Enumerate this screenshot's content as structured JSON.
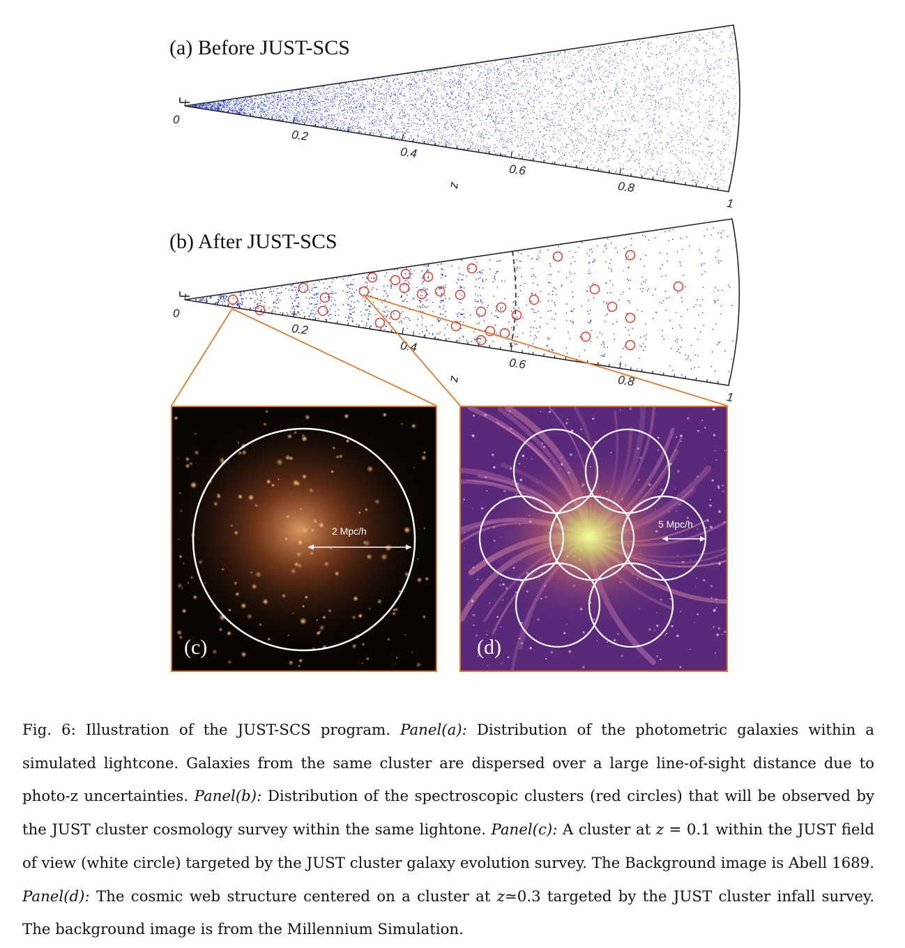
{
  "figure": {
    "panel_a_title": "(a) Before JUST-SCS",
    "panel_b_title": "(b) After JUST-SCS",
    "axis_label": "z",
    "tick_labels": [
      "0",
      "0.2",
      "0.4",
      "0.6",
      "0.8",
      "1"
    ],
    "panel_c_label": "(c)",
    "panel_c_scale": "2 Mpc/h",
    "panel_d_label": "(d)",
    "panel_d_scale": "5 Mpc/h",
    "colors": {
      "galaxy_points": "#1a2fd6",
      "cluster_circles": "#e23a2a",
      "zoom_lines": "#e07a2c",
      "panel_c_bg": "#0a0604",
      "panel_d_bg": "#6a2f8a"
    }
  },
  "caption": {
    "fig_id": "Fig. 6:",
    "intro": " Illustration of the JUST-SCS program. ",
    "a_head": "Panel(a):",
    "a_text": " Distribution of the photometric galaxies within a simulated lightcone. Galaxies from the same cluster are dispersed over a large line-of-sight distance due to photo-z uncertainties. ",
    "b_head": "Panel(b):",
    "b_text": " Distribution of the spectroscopic clusters (red circles) that will be observed by the JUST cluster cosmology survey within the same lightone. ",
    "c_head": "Panel(c):",
    "c_text_1": " A cluster at ",
    "c_z": "z",
    "c_text_2": " = 0.1 within the JUST field of view (white circle) targeted by the JUST cluster galaxy evolution survey. The Background image is Abell 1689. ",
    "d_head": "Panel(d):",
    "d_text_1": " The cosmic web structure centered on a cluster at ",
    "d_z": "z",
    "d_text_2": "≃0.3 targeted by the JUST cluster infall survey. The background image is from the Millennium Simulation."
  }
}
